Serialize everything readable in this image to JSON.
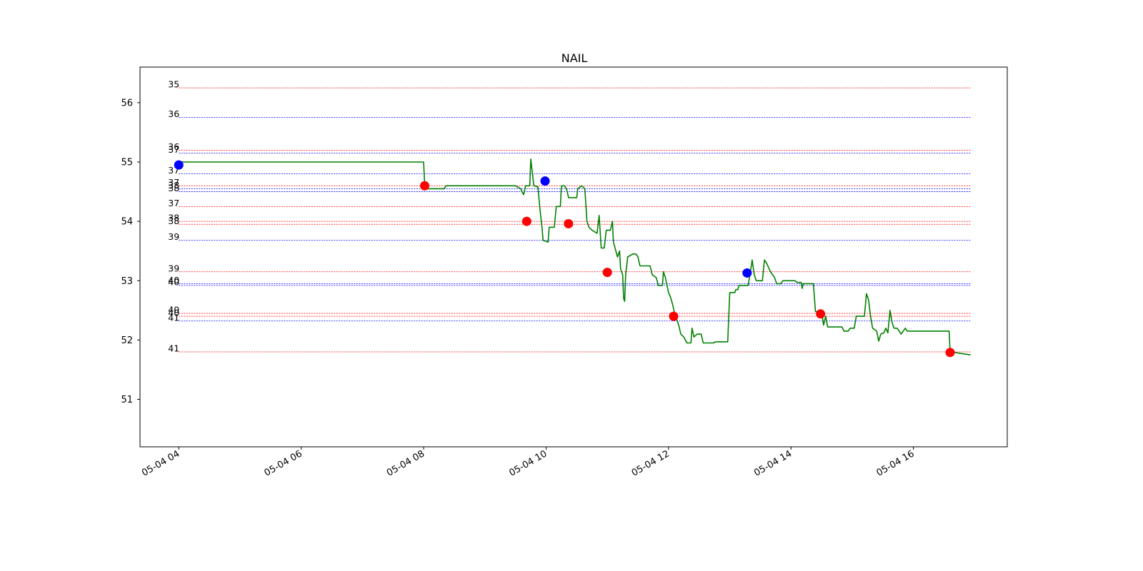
{
  "chart_data": {
    "type": "line",
    "title": "NAIL",
    "xlabel": "",
    "ylabel": "",
    "ylim": [
      50.2,
      56.6
    ],
    "xlim": [
      "05-04 03:22",
      "05-04 17:32"
    ],
    "grid": false,
    "yticks": [
      51,
      52,
      53,
      54,
      55,
      56
    ],
    "xticks": [
      "05-04 04",
      "05-04 06",
      "05-04 08",
      "05-04 10",
      "05-04 12",
      "05-04 14",
      "05-04 16"
    ],
    "xtick_times": [
      "05-04 04:00",
      "05-04 06:00",
      "05-04 08:00",
      "05-04 10:00",
      "05-04 12:00",
      "05-04 14:00",
      "05-04 16:00"
    ],
    "colors": {
      "price": "#008000",
      "buy": "#0000ff",
      "sell": "#ff0000"
    },
    "series": [
      {
        "color": "#008000",
        "points": [
          [
            "05-04 04:00",
            55.0
          ],
          [
            "05-04 08:00",
            55.0
          ],
          [
            "05-04 08:01",
            54.6
          ],
          [
            "05-04 08:03",
            54.55
          ],
          [
            "05-04 08:20",
            54.55
          ],
          [
            "05-04 08:22",
            54.6
          ],
          [
            "05-04 09:30",
            54.6
          ],
          [
            "05-04 09:35",
            54.55
          ],
          [
            "05-04 09:38",
            54.45
          ],
          [
            "05-04 09:40",
            54.6
          ],
          [
            "05-04 09:44",
            54.6
          ],
          [
            "05-04 09:45",
            55.05
          ],
          [
            "05-04 09:48",
            54.6
          ],
          [
            "05-04 09:52",
            54.58
          ],
          [
            "05-04 09:54",
            54.2
          ],
          [
            "05-04 09:56",
            53.9
          ],
          [
            "05-04 09:57",
            53.68
          ],
          [
            "05-04 10:02",
            53.65
          ],
          [
            "05-04 10:03",
            53.9
          ],
          [
            "05-04 10:08",
            53.9
          ],
          [
            "05-04 10:10",
            54.25
          ],
          [
            "05-04 10:14",
            54.25
          ],
          [
            "05-04 10:15",
            54.6
          ],
          [
            "05-04 10:18",
            54.6
          ],
          [
            "05-04 10:20",
            54.55
          ],
          [
            "05-04 10:22",
            54.4
          ],
          [
            "05-04 10:30",
            54.4
          ],
          [
            "05-04 10:31",
            54.55
          ],
          [
            "05-04 10:35",
            54.6
          ],
          [
            "05-04 10:38",
            54.55
          ],
          [
            "05-04 10:40",
            54.0
          ],
          [
            "05-04 10:42",
            53.9
          ],
          [
            "05-04 10:45",
            53.85
          ],
          [
            "05-04 10:50",
            53.8
          ],
          [
            "05-04 10:52",
            54.1
          ],
          [
            "05-04 10:54",
            53.55
          ],
          [
            "05-04 10:57",
            53.55
          ],
          [
            "05-04 10:59",
            53.85
          ],
          [
            "05-04 11:03",
            53.85
          ],
          [
            "05-04 11:05",
            54.0
          ],
          [
            "05-04 11:06",
            53.65
          ],
          [
            "05-04 11:10",
            53.4
          ],
          [
            "05-04 11:12",
            53.5
          ],
          [
            "05-04 11:13",
            53.2
          ],
          [
            "05-04 11:15",
            53.1
          ],
          [
            "05-04 11:16",
            52.7
          ],
          [
            "05-04 11:17",
            52.65
          ],
          [
            "05-04 11:18",
            53.1
          ],
          [
            "05-04 11:20",
            53.4
          ],
          [
            "05-04 11:25",
            53.45
          ],
          [
            "05-04 11:28",
            53.45
          ],
          [
            "05-04 11:30",
            53.4
          ],
          [
            "05-04 11:32",
            53.25
          ],
          [
            "05-04 11:42",
            53.25
          ],
          [
            "05-04 11:44",
            53.1
          ],
          [
            "05-04 11:48",
            53.05
          ],
          [
            "05-04 11:50",
            52.92
          ],
          [
            "05-04 11:54",
            52.92
          ],
          [
            "05-04 11:55",
            53.15
          ],
          [
            "05-04 11:57",
            53.05
          ],
          [
            "05-04 12:00",
            52.8
          ],
          [
            "05-04 12:02",
            52.72
          ],
          [
            "05-04 12:04",
            52.6
          ],
          [
            "05-04 12:06",
            52.45
          ],
          [
            "05-04 12:08",
            52.35
          ],
          [
            "05-04 12:10",
            52.25
          ],
          [
            "05-04 12:12",
            52.1
          ],
          [
            "05-04 12:15",
            52.05
          ],
          [
            "05-04 12:18",
            51.95
          ],
          [
            "05-04 12:22",
            51.95
          ],
          [
            "05-04 12:23",
            52.2
          ],
          [
            "05-04 12:25",
            52.05
          ],
          [
            "05-04 12:28",
            52.1
          ],
          [
            "05-04 12:32",
            52.1
          ],
          [
            "05-04 12:34",
            51.95
          ],
          [
            "05-04 12:44",
            51.95
          ],
          [
            "05-04 12:46",
            51.97
          ],
          [
            "05-04 12:58",
            51.97
          ],
          [
            "05-04 13:00",
            52.8
          ],
          [
            "05-04 13:05",
            52.8
          ],
          [
            "05-04 13:06",
            52.85
          ],
          [
            "05-04 13:08",
            52.85
          ],
          [
            "05-04 13:09",
            52.92
          ],
          [
            "05-04 13:18",
            52.92
          ],
          [
            "05-04 13:20",
            53.12
          ],
          [
            "05-04 13:22",
            53.35
          ],
          [
            "05-04 13:24",
            53.1
          ],
          [
            "05-04 13:26",
            53.0
          ],
          [
            "05-04 13:32",
            53.0
          ],
          [
            "05-04 13:34",
            53.35
          ],
          [
            "05-04 13:36",
            53.3
          ],
          [
            "05-04 13:40",
            53.15
          ],
          [
            "05-04 13:44",
            53.05
          ],
          [
            "05-04 13:46",
            52.95
          ],
          [
            "05-04 13:50",
            52.95
          ],
          [
            "05-04 13:52",
            53.0
          ],
          [
            "05-04 14:04",
            53.0
          ],
          [
            "05-04 14:06",
            52.97
          ],
          [
            "05-04 14:10",
            52.97
          ],
          [
            "05-04 14:11",
            52.87
          ],
          [
            "05-04 14:12",
            52.95
          ],
          [
            "05-04 14:22",
            52.95
          ],
          [
            "05-04 14:24",
            52.48
          ],
          [
            "05-04 14:30",
            52.48
          ],
          [
            "05-04 14:32",
            52.25
          ],
          [
            "05-04 14:34",
            52.4
          ],
          [
            "05-04 14:36",
            52.22
          ],
          [
            "05-04 14:50",
            52.22
          ],
          [
            "05-04 14:52",
            52.15
          ],
          [
            "05-04 14:56",
            52.15
          ],
          [
            "05-04 14:58",
            52.2
          ],
          [
            "05-04 15:02",
            52.2
          ],
          [
            "05-04 15:04",
            52.4
          ],
          [
            "05-04 15:12",
            52.4
          ],
          [
            "05-04 15:14",
            52.78
          ],
          [
            "05-04 15:16",
            52.68
          ],
          [
            "05-04 15:18",
            52.4
          ],
          [
            "05-04 15:20",
            52.2
          ],
          [
            "05-04 15:24",
            52.15
          ],
          [
            "05-04 15:26",
            51.98
          ],
          [
            "05-04 15:28",
            52.1
          ],
          [
            "05-04 15:31",
            52.12
          ],
          [
            "05-04 15:33",
            52.2
          ],
          [
            "05-04 15:35",
            52.12
          ],
          [
            "05-04 15:37",
            52.5
          ],
          [
            "05-04 15:39",
            52.3
          ],
          [
            "05-04 15:41",
            52.2
          ],
          [
            "05-04 15:44",
            52.2
          ],
          [
            "05-04 15:46",
            52.15
          ],
          [
            "05-04 15:48",
            52.1
          ],
          [
            "05-04 15:50",
            52.15
          ],
          [
            "05-04 15:52",
            52.2
          ],
          [
            "05-04 15:54",
            52.15
          ],
          [
            "05-04 16:35",
            52.15
          ],
          [
            "05-04 16:36",
            51.8
          ],
          [
            "05-04 16:56",
            51.75
          ]
        ]
      }
    ],
    "markers": [
      {
        "x": "05-04 04:00",
        "y": 54.95,
        "color": "#0000ff"
      },
      {
        "x": "05-04 08:01",
        "y": 54.6,
        "color": "#ff0000"
      },
      {
        "x": "05-04 09:41",
        "y": 54.0,
        "color": "#ff0000"
      },
      {
        "x": "05-04 09:59",
        "y": 54.68,
        "color": "#0000ff"
      },
      {
        "x": "05-04 10:22",
        "y": 53.96,
        "color": "#ff0000"
      },
      {
        "x": "05-04 11:00",
        "y": 53.14,
        "color": "#ff0000"
      },
      {
        "x": "05-04 12:05",
        "y": 52.4,
        "color": "#ff0000"
      },
      {
        "x": "05-04 13:17",
        "y": 53.13,
        "color": "#0000ff"
      },
      {
        "x": "05-04 14:29",
        "y": 52.44,
        "color": "#ff0000"
      },
      {
        "x": "05-04 16:36",
        "y": 51.79,
        "color": "#ff0000"
      }
    ],
    "hlines": [
      {
        "y": 56.25,
        "label": "35",
        "color": "#ff0000"
      },
      {
        "y": 55.75,
        "label": "36",
        "color": "#0000ff"
      },
      {
        "y": 55.2,
        "label": "36",
        "color": "#ff0000"
      },
      {
        "y": 55.15,
        "label": "37",
        "color": "#0000ff"
      },
      {
        "y": 54.8,
        "label": "37",
        "color": "#0000ff"
      },
      {
        "y": 54.6,
        "label": "37",
        "color": "#ff0000"
      },
      {
        "y": 54.55,
        "label": "38",
        "color": "#0000ff"
      },
      {
        "y": 54.5,
        "label": "38",
        "color": "#0000ff"
      },
      {
        "y": 54.25,
        "label": "37",
        "color": "#ff0000"
      },
      {
        "y": 54.0,
        "label": "38",
        "color": "#ff0000"
      },
      {
        "y": 53.95,
        "label": "38",
        "color": "#ff0000"
      },
      {
        "y": 53.68,
        "label": "39",
        "color": "#0000ff"
      },
      {
        "y": 53.15,
        "label": "39",
        "color": "#ff0000"
      },
      {
        "y": 52.95,
        "label": "40",
        "color": "#0000ff"
      },
      {
        "y": 52.92,
        "label": "40",
        "color": "#0000ff"
      },
      {
        "y": 52.45,
        "label": "40",
        "color": "#ff0000"
      },
      {
        "y": 52.4,
        "label": "40",
        "color": "#ff0000"
      },
      {
        "y": 52.32,
        "label": "41",
        "color": "#0000ff"
      },
      {
        "y": 51.8,
        "label": "41",
        "color": "#ff0000"
      }
    ],
    "hline_span": [
      "05-04 04:00",
      "05-04 16:56"
    ]
  }
}
